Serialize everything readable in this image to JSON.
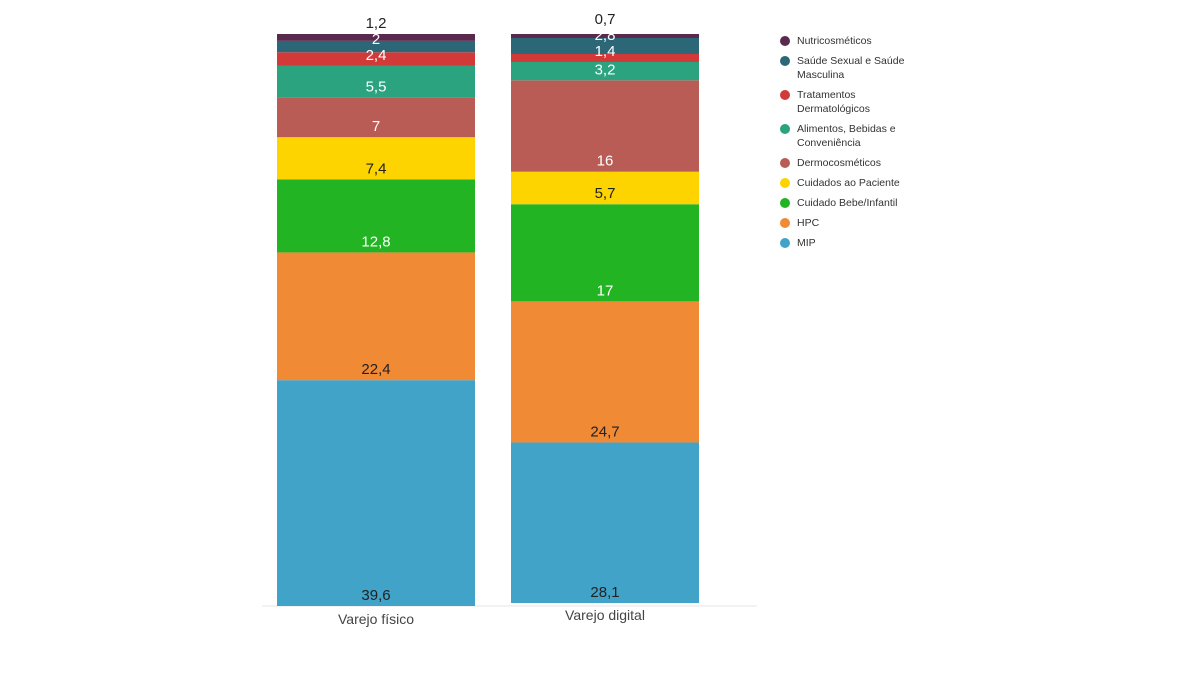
{
  "chart_data": {
    "type": "bar",
    "stacked": true,
    "categories": [
      "Varejo físico",
      "Varejo digital"
    ],
    "series": [
      {
        "name": "MIP",
        "color": "#42a3c8",
        "values": [
          39.6,
          28.1
        ],
        "labels": [
          "39,6",
          "28,1"
        ]
      },
      {
        "name": "HPC",
        "color": "#f08a35",
        "values": [
          22.4,
          24.7
        ],
        "labels": [
          "22,4",
          "24,7"
        ]
      },
      {
        "name": "Cuidado Bebe/Infantil",
        "color": "#22b422",
        "values": [
          12.8,
          17
        ],
        "labels": [
          "12,8",
          "17"
        ]
      },
      {
        "name": "Cuidados ao Paciente",
        "color": "#fdd300",
        "values": [
          7.4,
          5.7
        ],
        "labels": [
          "7,4",
          "5,7"
        ]
      },
      {
        "name": "Dermocosméticos",
        "color": "#b85c55",
        "values": [
          7,
          16
        ],
        "labels": [
          "7",
          "16"
        ]
      },
      {
        "name": "Alimentos, Bebidas e Conveniência",
        "color": "#2aa37e",
        "values": [
          5.5,
          3.2
        ],
        "labels": [
          "5,5",
          "3,2"
        ]
      },
      {
        "name": "Tratamentos Dermatológicos",
        "color": "#d23a3a",
        "values": [
          2.4,
          1.4
        ],
        "labels": [
          "2,4",
          "1,4"
        ]
      },
      {
        "name": "Saúde Sexual e Saúde Masculina",
        "color": "#2b6777",
        "values": [
          2,
          2.8
        ],
        "labels": [
          "2",
          "2,8"
        ]
      },
      {
        "name": "Nutricosméticos",
        "color": "#5a2a4e",
        "values": [
          1.2,
          0.7
        ],
        "labels": [
          "1,2",
          "0,7"
        ]
      }
    ],
    "legend_position": "right",
    "legend_order": [
      "Nutricosméticos",
      "Saúde Sexual e Saúde Masculina",
      "Tratamentos Dermatológicos",
      "Alimentos, Bebidas e Conveniência",
      "Dermocosméticos",
      "Cuidados ao Paciente",
      "Cuidado Bebe/Infantil",
      "HPC",
      "MIP"
    ],
    "grid": false
  }
}
